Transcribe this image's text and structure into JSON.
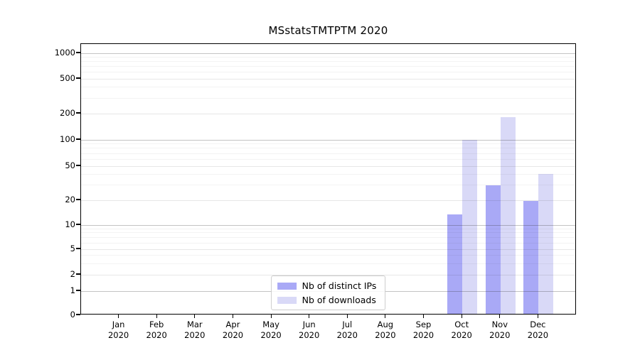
{
  "chart_data": {
    "type": "bar",
    "title": "MSstatsTMTPTM 2020",
    "categories": [
      "Jan",
      "Feb",
      "Mar",
      "Apr",
      "May",
      "Jun",
      "Jul",
      "Aug",
      "Sep",
      "Oct",
      "Nov",
      "Dec"
    ],
    "xtick_year": "2020",
    "series": [
      {
        "name": "Nb of distinct IPs",
        "color": "#a9a9f6",
        "values": [
          0,
          0,
          0,
          0,
          0,
          0,
          0,
          0,
          0,
          13,
          29,
          19
        ]
      },
      {
        "name": "Nb of downloads",
        "color": "#d9d9f7",
        "values": [
          0,
          0,
          0,
          0,
          0,
          0,
          0,
          0,
          0,
          97,
          176,
          39
        ]
      }
    ],
    "yticks": [
      0,
      1,
      2,
      5,
      10,
      20,
      50,
      100,
      200,
      500,
      1000
    ],
    "yscale": "symlog",
    "ylim": [
      0,
      1500
    ],
    "grid": true,
    "legend_position": "lower center",
    "layout": {
      "ytick_axis_fractions": {
        "0": 1.0,
        "1": 0.911,
        "2": 0.8508,
        "5": 0.7565,
        "10": 0.6675,
        "20": 0.5759,
        "50": 0.4503,
        "100": 0.3534,
        "200": 0.2565,
        "500": 0.1283,
        "1000": 0.034
      },
      "major_gridlines": [
        1,
        10,
        100,
        1000
      ],
      "mid_gridlines": [
        2,
        5,
        20,
        50,
        200,
        500
      ],
      "minor_gridlines": [
        3,
        4,
        6,
        7,
        8,
        9,
        30,
        40,
        60,
        70,
        80,
        90,
        300,
        400,
        600,
        700,
        800,
        900
      ]
    }
  }
}
